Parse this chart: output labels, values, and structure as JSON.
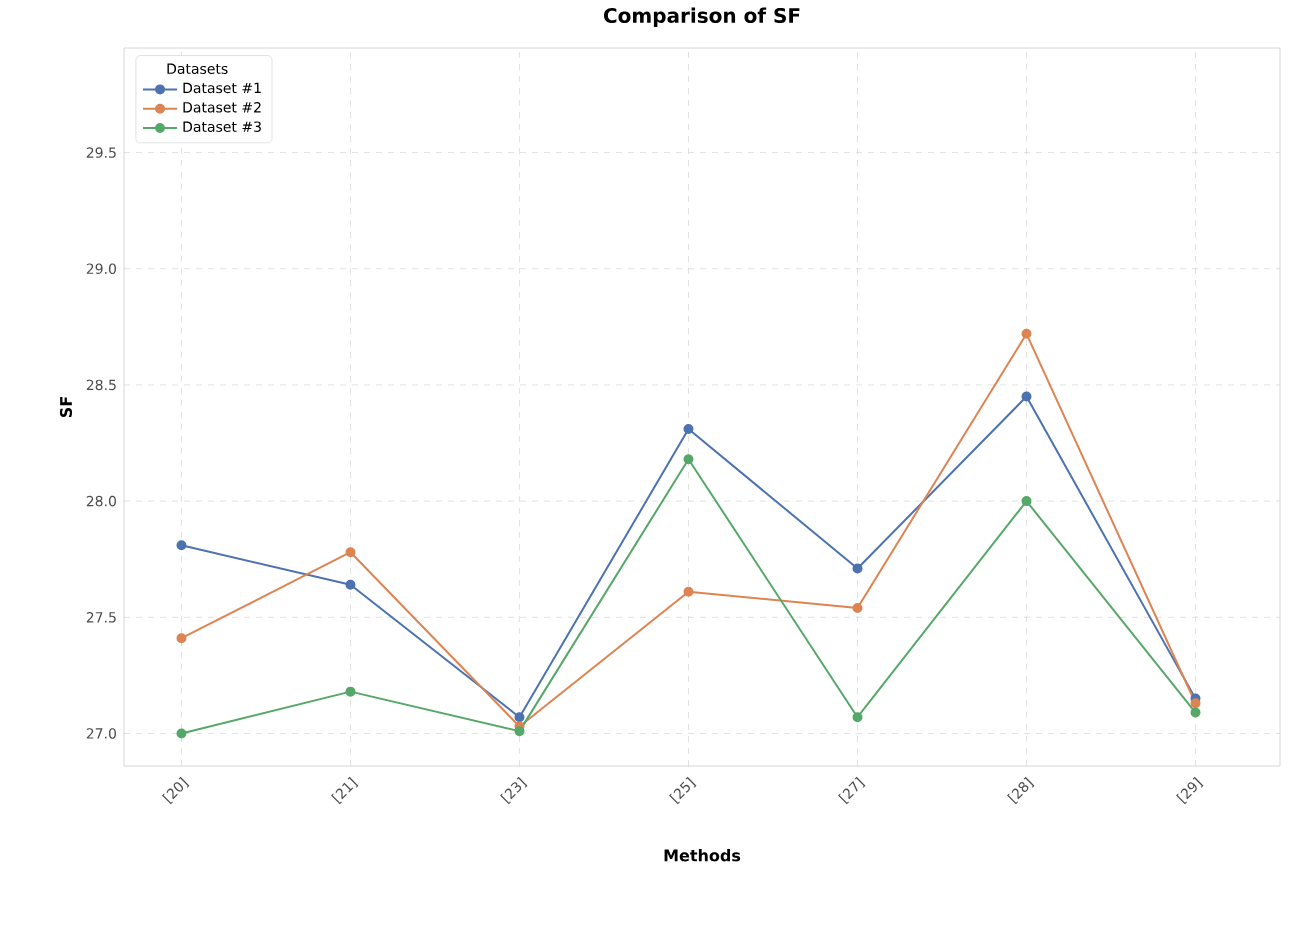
{
  "chart_data": {
    "type": "line",
    "title": "Comparison of SF",
    "xlabel": "Methods",
    "ylabel": "SF",
    "legend_title": "Datasets",
    "categories": [
      "[20]",
      "[21]",
      "[23]",
      "[25]",
      "[27]",
      "[28]",
      "[29]"
    ],
    "series": [
      {
        "name": "Dataset #1",
        "color": "#4c72b0",
        "values": [
          27.81,
          27.64,
          27.07,
          28.31,
          27.71,
          28.45,
          27.15
        ]
      },
      {
        "name": "Dataset #2",
        "color": "#dd8452",
        "values": [
          27.41,
          27.78,
          27.03,
          27.61,
          27.54,
          28.72,
          27.13
        ]
      },
      {
        "name": "Dataset #3",
        "color": "#55a868",
        "values": [
          27.0,
          27.18,
          27.01,
          28.18,
          27.07,
          28.0,
          27.09
        ]
      }
    ],
    "ylim": [
      26.86,
      29.95
    ],
    "yticks": [
      {
        "value": 27.0,
        "label": "27.0"
      },
      {
        "value": 27.5,
        "label": "27.5"
      },
      {
        "value": 28.0,
        "label": "28.0"
      },
      {
        "value": 28.5,
        "label": "28.5"
      },
      {
        "value": 29.0,
        "label": "29.0"
      },
      {
        "value": 29.5,
        "label": "29.5"
      }
    ],
    "grid": true,
    "legend": "top left",
    "marker": "circle",
    "line_style": "solid"
  }
}
